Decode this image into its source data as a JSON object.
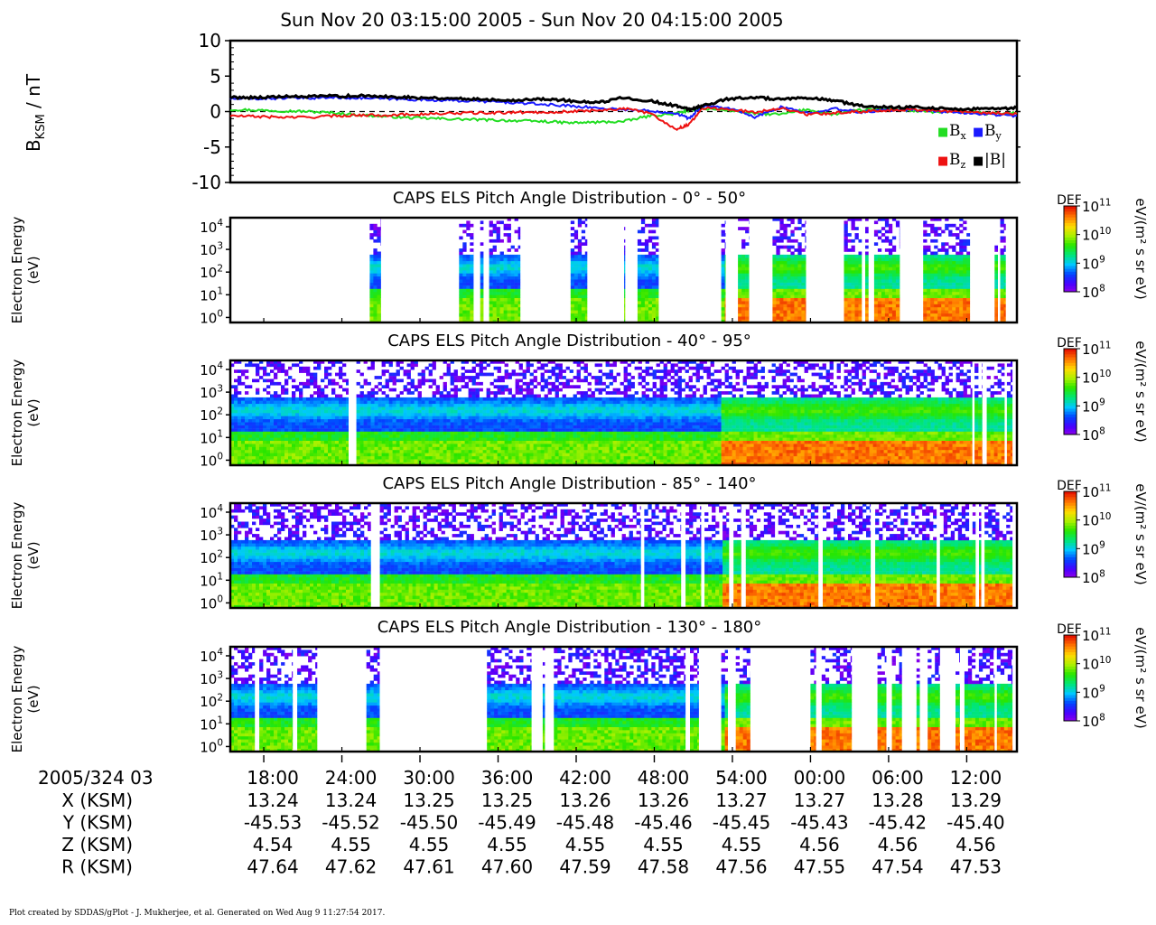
{
  "title": "Sun Nov 20 03:15:00 2005 - Sun Nov 20 04:15:00 2005",
  "footer": "Plot created by SDDAS/gPlot - J. Mukherjee, et al.  Generated on Wed Aug 9 11:27:54 2017.",
  "colors": {
    "bx": "#22dd22",
    "by": "#1a1aff",
    "bz": "#ee1111",
    "bmag": "#000000"
  },
  "chart_data": [
    {
      "type": "line",
      "ylabel_main": "B",
      "ylabel_sub": "KSM",
      "ylabel_unit": " / nT",
      "ylim": [
        -10,
        10
      ],
      "yticks": [
        "10",
        "5",
        "0",
        "-5",
        "-10"
      ],
      "ytick_values": [
        10,
        5,
        0,
        -5,
        -10
      ],
      "x_minutes": [
        0,
        2,
        4,
        6,
        8,
        10,
        12,
        14,
        16,
        18,
        20,
        22,
        24,
        26,
        28,
        30,
        32,
        34,
        35,
        36,
        38,
        40,
        42,
        44,
        46,
        48,
        50,
        52,
        54,
        56,
        58,
        60
      ],
      "series": [
        {
          "name": "Bx",
          "color_key": "bx",
          "values": [
            0.3,
            0.2,
            0.1,
            0.0,
            -0.2,
            -0.5,
            -0.7,
            -0.9,
            -1.0,
            -1.1,
            -1.2,
            -1.3,
            -1.4,
            -1.6,
            -1.5,
            -1.4,
            -0.6,
            -0.3,
            0.2,
            0.4,
            0.2,
            -0.3,
            -0.4,
            0.3,
            -0.4,
            0.2,
            0.4,
            0.1,
            -0.1,
            0.0,
            -0.3,
            -0.2
          ]
        },
        {
          "name": "By",
          "color_key": "by",
          "values": [
            1.8,
            1.8,
            1.9,
            1.9,
            2.0,
            1.9,
            1.8,
            1.7,
            1.6,
            1.5,
            1.4,
            1.2,
            1.0,
            0.8,
            0.5,
            0.3,
            0.1,
            -0.2,
            -1.0,
            0.8,
            0.5,
            -0.8,
            0.6,
            -0.2,
            0.4,
            -0.1,
            0.2,
            0.3,
            0.0,
            -0.2,
            -0.4,
            -0.6
          ]
        },
        {
          "name": "Bz",
          "color_key": "bz",
          "values": [
            -0.6,
            -0.7,
            -0.8,
            -0.8,
            -0.6,
            -0.5,
            -0.5,
            -0.4,
            -0.3,
            -0.2,
            -0.2,
            -0.1,
            -0.1,
            0.0,
            0.2,
            0.4,
            -0.2,
            -2.5,
            -1.8,
            0.5,
            0.3,
            -0.1,
            0.5,
            -0.4,
            -0.2,
            0.0,
            0.2,
            0.3,
            0.1,
            0.0,
            -0.2,
            -0.3
          ]
        },
        {
          "name": "|B|",
          "color_key": "bmag",
          "values": [
            2.0,
            2.0,
            2.1,
            2.1,
            2.2,
            2.2,
            2.1,
            2.0,
            1.9,
            1.8,
            1.7,
            1.6,
            1.8,
            1.5,
            1.2,
            2.0,
            1.5,
            0.8,
            0.3,
            0.8,
            1.8,
            2.0,
            1.7,
            1.9,
            1.6,
            0.8,
            0.6,
            0.6,
            0.5,
            0.3,
            0.4,
            0.5
          ]
        }
      ],
      "legend": [
        {
          "glyph": "■",
          "color_key": "bx",
          "label": "B",
          "sub": "x"
        },
        {
          "glyph": "■",
          "color_key": "by",
          "label": "B",
          "sub": "y"
        },
        {
          "glyph": "■",
          "color_key": "bz",
          "label": "B",
          "sub": "z"
        },
        {
          "glyph": "■",
          "color_key": "bmag",
          "label": "|B|",
          "sub": ""
        }
      ]
    },
    {
      "type": "heatmap",
      "title": "CAPS ELS Pitch Angle Distribution - 0° - 50°",
      "ylabel": [
        "Electron Energy",
        "(eV)"
      ],
      "yscale": "log",
      "ylim_eV": [
        0.6,
        25000
      ],
      "yticks": [
        {
          "base": "10",
          "exp": "4"
        },
        {
          "base": "10",
          "exp": "3"
        },
        {
          "base": "10",
          "exp": "2"
        },
        {
          "base": "10",
          "exp": "1"
        },
        {
          "base": "10",
          "exp": "0"
        }
      ],
      "coverage_minutes": [
        [
          12.5,
          13.5
        ],
        [
          20.5,
          21.8
        ],
        [
          22.4,
          22.7
        ],
        [
          23.2,
          26.0
        ],
        [
          30.5,
          32.0
        ],
        [
          35.3,
          35.4
        ],
        [
          36.5,
          38.4
        ],
        [
          44.0,
          44.4
        ],
        [
          45.5,
          46.5
        ],
        [
          48.6,
          51.6
        ],
        [
          55.0,
          56.6
        ],
        [
          56.9,
          57.2
        ],
        [
          57.7,
          60.0
        ],
        [
          62.1,
          66.3
        ],
        [
          68.5,
          68.8
        ],
        [
          69.0,
          69.5
        ]
      ]
    },
    {
      "type": "heatmap",
      "title": "CAPS ELS Pitch Angle Distribution - 40° - 95°",
      "ylabel": [
        "Electron Energy",
        "(eV)"
      ],
      "yscale": "log",
      "ylim_eV": [
        0.6,
        25000
      ],
      "yticks": [
        {
          "base": "10",
          "exp": "4"
        },
        {
          "base": "10",
          "exp": "3"
        },
        {
          "base": "10",
          "exp": "2"
        },
        {
          "base": "10",
          "exp": "1"
        },
        {
          "base": "10",
          "exp": "0"
        }
      ],
      "coverage_minutes": [
        [
          0.0,
          10.6
        ],
        [
          11.3,
          66.5
        ],
        [
          66.7,
          67.4
        ],
        [
          67.8,
          69.4
        ],
        [
          69.6,
          70.1
        ]
      ]
    },
    {
      "type": "heatmap",
      "title": "CAPS ELS Pitch Angle Distribution - 85° - 140°",
      "ylabel": [
        "Electron Energy",
        "(eV)"
      ],
      "yscale": "log",
      "ylim_eV": [
        0.6,
        25000
      ],
      "yticks": [
        {
          "base": "10",
          "exp": "4"
        },
        {
          "base": "10",
          "exp": "3"
        },
        {
          "base": "10",
          "exp": "2"
        },
        {
          "base": "10",
          "exp": "1"
        },
        {
          "base": "10",
          "exp": "0"
        }
      ],
      "coverage_minutes": [
        [
          0.0,
          12.6
        ],
        [
          13.4,
          36.8
        ],
        [
          37.1,
          40.4
        ],
        [
          40.8,
          42.2
        ],
        [
          42.5,
          44.7
        ],
        [
          45.1,
          45.8
        ],
        [
          46.2,
          52.7
        ],
        [
          53.1,
          57.4
        ],
        [
          57.8,
          63.3
        ],
        [
          63.6,
          66.8
        ],
        [
          67.1,
          67.3
        ],
        [
          67.6,
          70.1
        ]
      ]
    },
    {
      "type": "heatmap",
      "title": "CAPS ELS Pitch Angle Distribution - 130° - 180°",
      "ylabel": [
        "Electron Energy",
        "(eV)"
      ],
      "yscale": "log",
      "ylim_eV": [
        0.6,
        25000
      ],
      "yticks": [
        {
          "base": "10",
          "exp": "4"
        },
        {
          "base": "10",
          "exp": "3"
        },
        {
          "base": "10",
          "exp": "2"
        },
        {
          "base": "10",
          "exp": "1"
        },
        {
          "base": "10",
          "exp": "0"
        }
      ],
      "coverage_minutes": [
        [
          0.0,
          2.2
        ],
        [
          2.6,
          5.6
        ],
        [
          6.0,
          7.8
        ],
        [
          12.2,
          13.4
        ],
        [
          23.0,
          27.0
        ],
        [
          28.0,
          28.2
        ],
        [
          29.0,
          40.8
        ],
        [
          41.2,
          42.0
        ],
        [
          44.0,
          44.6
        ],
        [
          45.3,
          46.6
        ],
        [
          52.0,
          52.5
        ],
        [
          53.0,
          55.7
        ],
        [
          58.0,
          58.8
        ],
        [
          59.3,
          60.2
        ],
        [
          61.5,
          61.8
        ],
        [
          62.5,
          63.6
        ],
        [
          65.0,
          65.4
        ],
        [
          65.8,
          68.5
        ],
        [
          68.7,
          70.1
        ]
      ]
    }
  ],
  "colorbar": {
    "label": "DEF",
    "unit": "eV/(m² s sr eV)",
    "ticks": [
      {
        "base": "10",
        "exp": "11"
      },
      {
        "base": "10",
        "exp": "10"
      },
      {
        "base": "10",
        "exp": "9"
      },
      {
        "base": "10",
        "exp": "8"
      }
    ]
  },
  "x_axis": {
    "start_label": "2005/324 03",
    "ticks": [
      "18:00",
      "24:00",
      "30:00",
      "36:00",
      "42:00",
      "48:00",
      "54:00",
      "00:00",
      "06:00",
      "12:00"
    ],
    "tick_minutes": [
      3,
      10,
      17,
      24,
      31,
      38,
      45,
      52,
      59,
      66
    ],
    "rows": [
      {
        "label": "X (KSM)",
        "values": [
          "13.24",
          "13.24",
          "13.25",
          "13.25",
          "13.26",
          "13.26",
          "13.27",
          "13.27",
          "13.28",
          "13.29"
        ]
      },
      {
        "label": "Y (KSM)",
        "values": [
          "-45.53",
          "-45.52",
          "-45.50",
          "-45.49",
          "-45.48",
          "-45.46",
          "-45.45",
          "-45.43",
          "-45.42",
          "-45.40"
        ]
      },
      {
        "label": "Z (KSM)",
        "values": [
          "4.54",
          "4.55",
          "4.55",
          "4.55",
          "4.55",
          "4.55",
          "4.55",
          "4.56",
          "4.56",
          "4.56"
        ]
      },
      {
        "label": "R (KSM)",
        "values": [
          "47.64",
          "47.62",
          "47.61",
          "47.60",
          "47.59",
          "47.58",
          "47.56",
          "47.55",
          "47.54",
          "47.53"
        ]
      }
    ]
  }
}
